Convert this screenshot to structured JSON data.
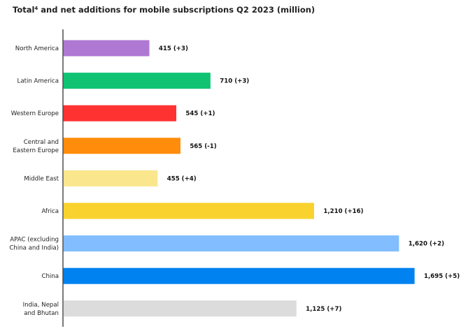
{
  "chart_data": {
    "type": "bar",
    "orientation": "horizontal",
    "title": "Total",
    "title_superscript": "4",
    "title_rest": " and net additions for mobile subscriptions Q2 2023 (million)",
    "xlabel": "",
    "ylabel": "",
    "xlim": [
      0,
      1700
    ],
    "grid": false,
    "legend": "none",
    "categories": [
      [
        "North America"
      ],
      [
        "Latin America"
      ],
      [
        "Western Europe"
      ],
      [
        "Central and",
        "Eastern Europe"
      ],
      [
        "Middle East"
      ],
      [
        "Africa"
      ],
      [
        "APAC (excluding",
        "China and India)"
      ],
      [
        "China"
      ],
      [
        "India, Nepal",
        "and Bhutan"
      ]
    ],
    "values": [
      415,
      710,
      545,
      565,
      455,
      1210,
      1620,
      1695,
      1125
    ],
    "net_additions": [
      3,
      3,
      1,
      -1,
      4,
      16,
      2,
      5,
      7
    ],
    "labels": [
      "415 (+3)",
      "710 (+3)",
      "545 (+1)",
      "565 (-1)",
      "455 (+4)",
      "1,210 (+16)",
      "1,620 (+2)",
      "1,695 (+5)",
      "1,125 (+7)"
    ],
    "colors": [
      "#af78d2",
      "#0fc373",
      "#ff3232",
      "#ff8c0a",
      "#fae68c",
      "#fad22d",
      "#82beff",
      "#0082f0",
      "#dcdcdc"
    ]
  }
}
